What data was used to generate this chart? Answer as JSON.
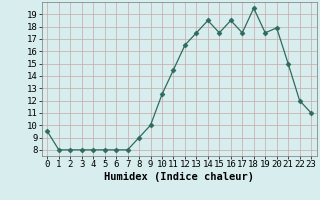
{
  "x": [
    0,
    1,
    2,
    3,
    4,
    5,
    6,
    7,
    8,
    9,
    10,
    11,
    12,
    13,
    14,
    15,
    16,
    17,
    18,
    19,
    20,
    21,
    22,
    23
  ],
  "y": [
    9.5,
    8.0,
    8.0,
    8.0,
    8.0,
    8.0,
    8.0,
    8.0,
    9.0,
    10.0,
    12.5,
    14.5,
    16.5,
    17.5,
    18.5,
    17.5,
    18.5,
    17.5,
    19.5,
    17.5,
    17.9,
    15.0,
    12.0,
    11.0
  ],
  "xlabel": "Humidex (Indice chaleur)",
  "xlim": [
    -0.5,
    23.5
  ],
  "ylim": [
    7.5,
    20.0
  ],
  "yticks": [
    8,
    9,
    10,
    11,
    12,
    13,
    14,
    15,
    16,
    17,
    18,
    19
  ],
  "xticks": [
    0,
    1,
    2,
    3,
    4,
    5,
    6,
    7,
    8,
    9,
    10,
    11,
    12,
    13,
    14,
    15,
    16,
    17,
    18,
    19,
    20,
    21,
    22,
    23
  ],
  "line_color": "#2e6b5e",
  "marker": "D",
  "marker_size": 2.5,
  "bg_color": "#d8eeee",
  "grid_major_color": "#c8a8a8",
  "grid_minor_color": "#c0d8d8",
  "xlabel_fontsize": 7.5,
  "tick_fontsize": 6.5,
  "tick_font": "monospace"
}
